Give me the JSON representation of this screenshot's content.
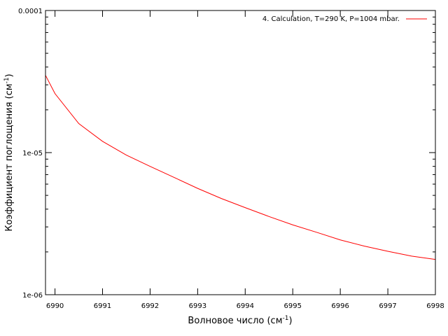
{
  "chart_data": {
    "type": "line",
    "title": "",
    "xlabel": "Волновое число (см",
    "xlabel_sup": "-1",
    "xlabel_tail": ")",
    "ylabel": "Коэффициент поглощения (см",
    "ylabel_sup": "-1",
    "ylabel_tail": ")",
    "xlim": [
      6989.8,
      6998
    ],
    "ylim": [
      1e-06,
      0.0001
    ],
    "y_scale": "log",
    "grid": false,
    "legend_position": "top-right",
    "x_ticks": [
      6990,
      6991,
      6992,
      6993,
      6994,
      6995,
      6996,
      6997,
      6998
    ],
    "x_tick_labels": [
      "6990",
      "6991",
      "6992",
      "6993",
      "6994",
      "6995",
      "6996",
      "6997",
      "6998"
    ],
    "y_ticks": [
      1e-06,
      1e-05,
      0.0001
    ],
    "y_tick_labels": [
      "1e-06",
      "1e-05",
      "0.0001"
    ],
    "series": [
      {
        "name": "4. Calculation, T=290 K, P=1004 mbar.",
        "color": "#ff0000",
        "x": [
          6989.8,
          6990.0,
          6990.5,
          6991.0,
          6991.5,
          6992.0,
          6992.5,
          6993.0,
          6993.5,
          6994.0,
          6994.5,
          6995.0,
          6995.5,
          6996.0,
          6996.5,
          6997.0,
          6997.5,
          6998.0
        ],
        "y": [
          3.5e-05,
          2.6e-05,
          1.6e-05,
          1.2e-05,
          9.6e-06,
          8e-06,
          6.7e-06,
          5.6e-06,
          4.75e-06,
          4.1e-06,
          3.55e-06,
          3.1e-06,
          2.75e-06,
          2.43e-06,
          2.2e-06,
          2.02e-06,
          1.87e-06,
          1.77e-06
        ]
      }
    ]
  }
}
